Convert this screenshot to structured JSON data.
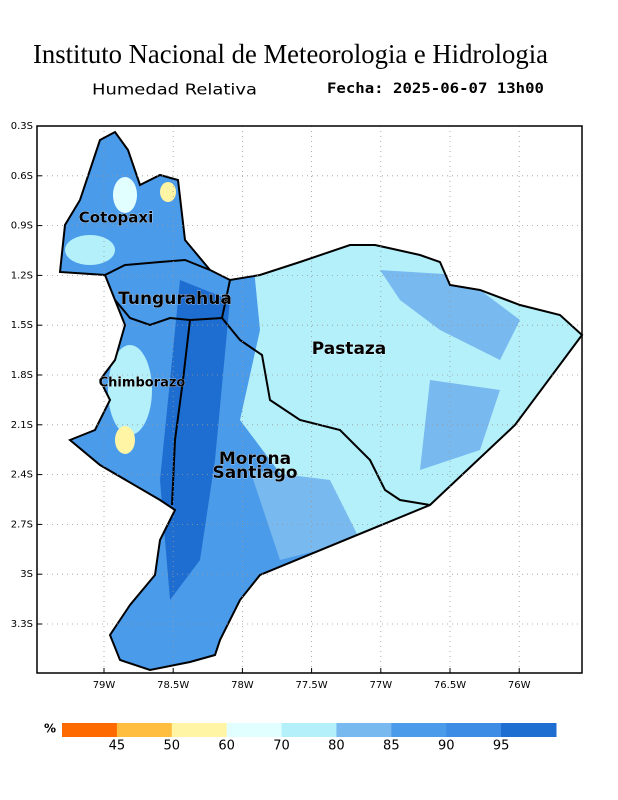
{
  "header": {
    "title": "Instituto Nacional de Meteorologia e Hidrologia",
    "subtitle": "Humedad Relativa",
    "date": "Fecha: 2025-06-07 13h00"
  },
  "map": {
    "lat_ticks": [
      "0.3S",
      "0.6S",
      "0.9S",
      "1.2S",
      "1.5S",
      "1.8S",
      "2.1S",
      "2.4S",
      "2.7S",
      "3S",
      "3.3S"
    ],
    "lon_ticks": [
      "79W",
      "78.5W",
      "78W",
      "77.5W",
      "77W",
      "76.5W",
      "76W"
    ],
    "regions": [
      "Cotopaxi",
      "Tungurahua",
      "Pastaza",
      "Chimborazo",
      "Morona",
      "Santiago"
    ]
  },
  "colorbar": {
    "unit": "%",
    "labels": [
      "45",
      "50",
      "60",
      "70",
      "80",
      "85",
      "90",
      "95"
    ],
    "colors": [
      "#ff6a00",
      "#ffbe40",
      "#fff5a5",
      "#e1ffff",
      "#b4f0fa",
      "#78b9f0",
      "#4b9beb",
      "#3c8ce6",
      "#1e6ed2"
    ]
  }
}
